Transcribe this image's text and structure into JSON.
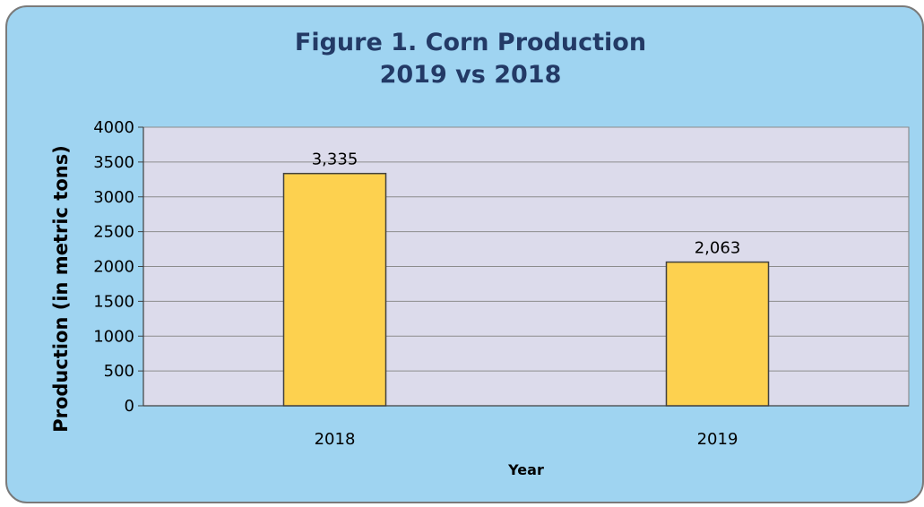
{
  "chart_data": {
    "type": "bar",
    "title": "Figure 1. Corn Production",
    "subtitle": "2019 vs 2018",
    "xlabel": "Year",
    "ylabel": "Production (in metric tons)",
    "categories": [
      "2018",
      "2019"
    ],
    "values": [
      3335,
      2063
    ],
    "data_labels": [
      "3,335",
      "2,063"
    ],
    "ylim": [
      0,
      4000
    ],
    "yticks": [
      0,
      500,
      1000,
      1500,
      2000,
      2500,
      3000,
      3500,
      4000
    ],
    "grid": true,
    "legend": "none",
    "colors": {
      "bar": "#fdd14f",
      "bar_border": "#404040",
      "plot_background": "#dcdbeb",
      "chart_background": "#9fd4f1",
      "title": "#233a66",
      "gridline": "#8c8c8c"
    }
  }
}
